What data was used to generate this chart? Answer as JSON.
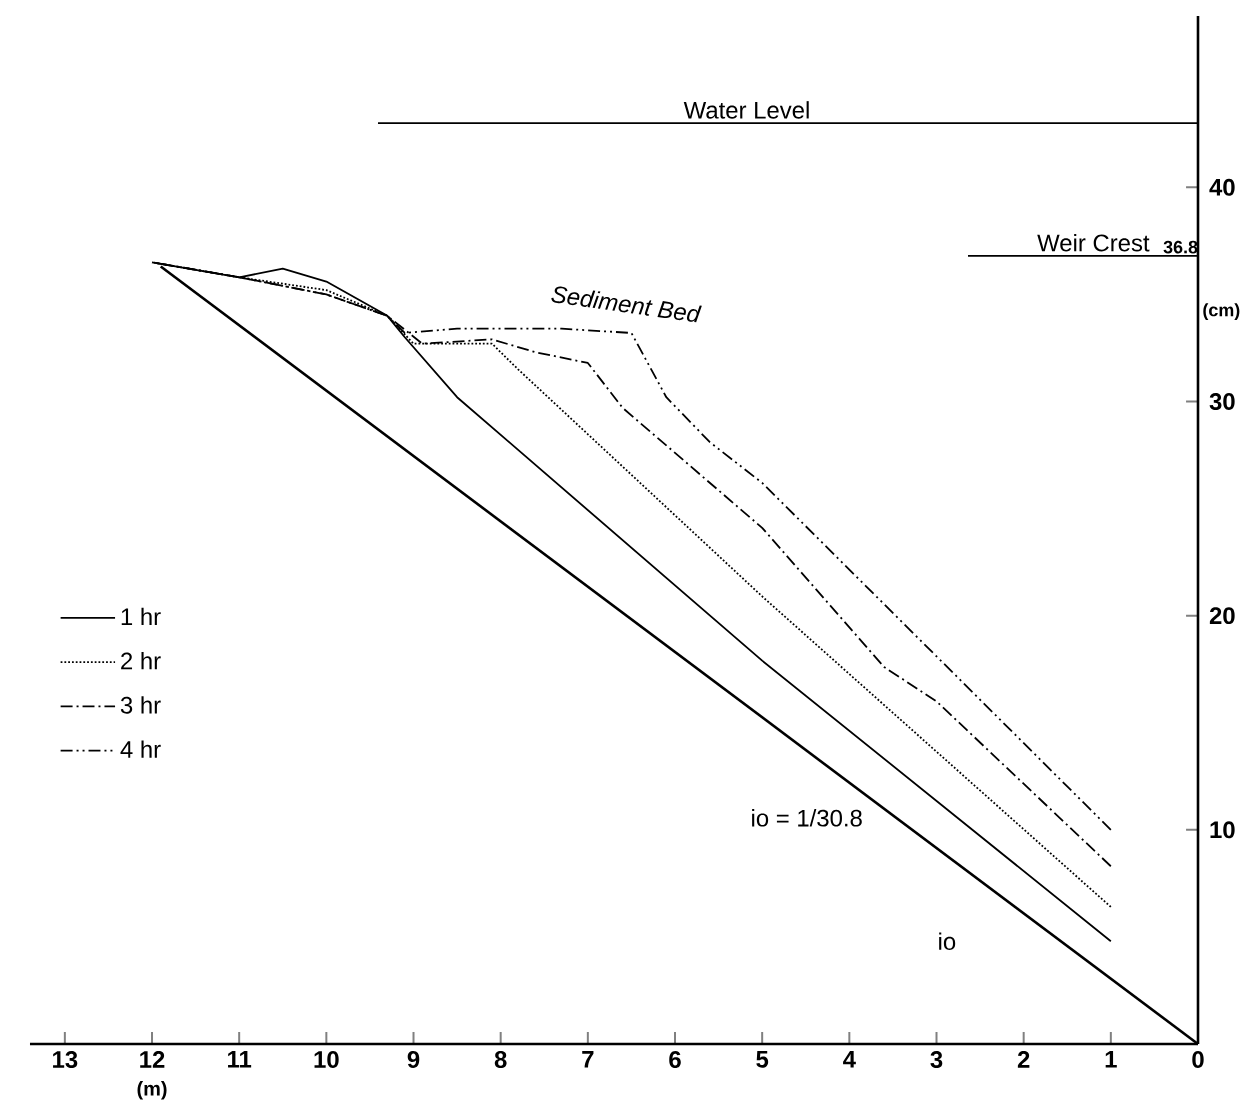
{
  "chart_data": {
    "type": "line",
    "xlabel": "(m)",
    "ylabel": "(cm)",
    "xlim": [
      13.4,
      0
    ],
    "xticks": [
      13,
      12,
      11,
      10,
      9,
      8,
      7,
      6,
      5,
      4,
      3,
      2,
      1,
      0
    ],
    "ylim": [
      0,
      48
    ],
    "yticks": [
      10,
      20,
      30,
      40
    ],
    "grid": false,
    "legend": "left",
    "series": [
      {
        "color": "#000000",
        "line_style": "solid",
        "x": [
          0,
          11.9
        ],
        "values": [
          0,
          36.3
        ]
      },
      {
        "name": "1 hr",
        "color": "#000000",
        "line_style": "solid",
        "x": [
          1,
          5,
          8.5,
          9.1,
          9.3,
          10,
          10.5,
          11,
          12
        ],
        "values": [
          4.8,
          17.9,
          30.2,
          33,
          34,
          35.6,
          36.2,
          35.8,
          36.5
        ]
      },
      {
        "name": "2 hr",
        "color": "#000000",
        "line_style": "dotted",
        "x": [
          1,
          5,
          7.8,
          8.1,
          9.0,
          9.3,
          10,
          11,
          12
        ],
        "values": [
          6.4,
          20.9,
          31.5,
          32.7,
          32.7,
          34,
          35.2,
          35.8,
          36.5
        ]
      },
      {
        "name": "3 hr",
        "color": "#000000",
        "line_style": "dashdot",
        "x": [
          1,
          3,
          3.6,
          5,
          6.6,
          7,
          7.6,
          8.1,
          8.9,
          9.3,
          10,
          11,
          12
        ],
        "values": [
          8.3,
          16.0,
          17.6,
          24.1,
          29.7,
          31.8,
          32.3,
          32.9,
          32.7,
          34,
          35.0,
          35.8,
          36.5
        ]
      },
      {
        "name": "4 hr",
        "color": "#000000",
        "line_style": "dashdotdot",
        "x": [
          1,
          5,
          5.6,
          6.1,
          6.5,
          7.3,
          8.5,
          9.1,
          9.3,
          10,
          11,
          12
        ],
        "values": [
          10.0,
          26.2,
          28.1,
          30.2,
          33.2,
          33.4,
          33.4,
          33.2,
          34,
          35.0,
          35.8,
          36.5
        ]
      }
    ],
    "ref_lines": [
      {
        "axis": "y",
        "value": 43,
        "label": "Water Level"
      },
      {
        "axis": "y",
        "value": 36.8,
        "label": "Weir Crest"
      }
    ],
    "annotations": [
      {
        "text": "36.8",
        "x": 0.2,
        "y": 36.8
      },
      "Sediment Bed",
      "io = 1/30.8",
      "io"
    ]
  }
}
